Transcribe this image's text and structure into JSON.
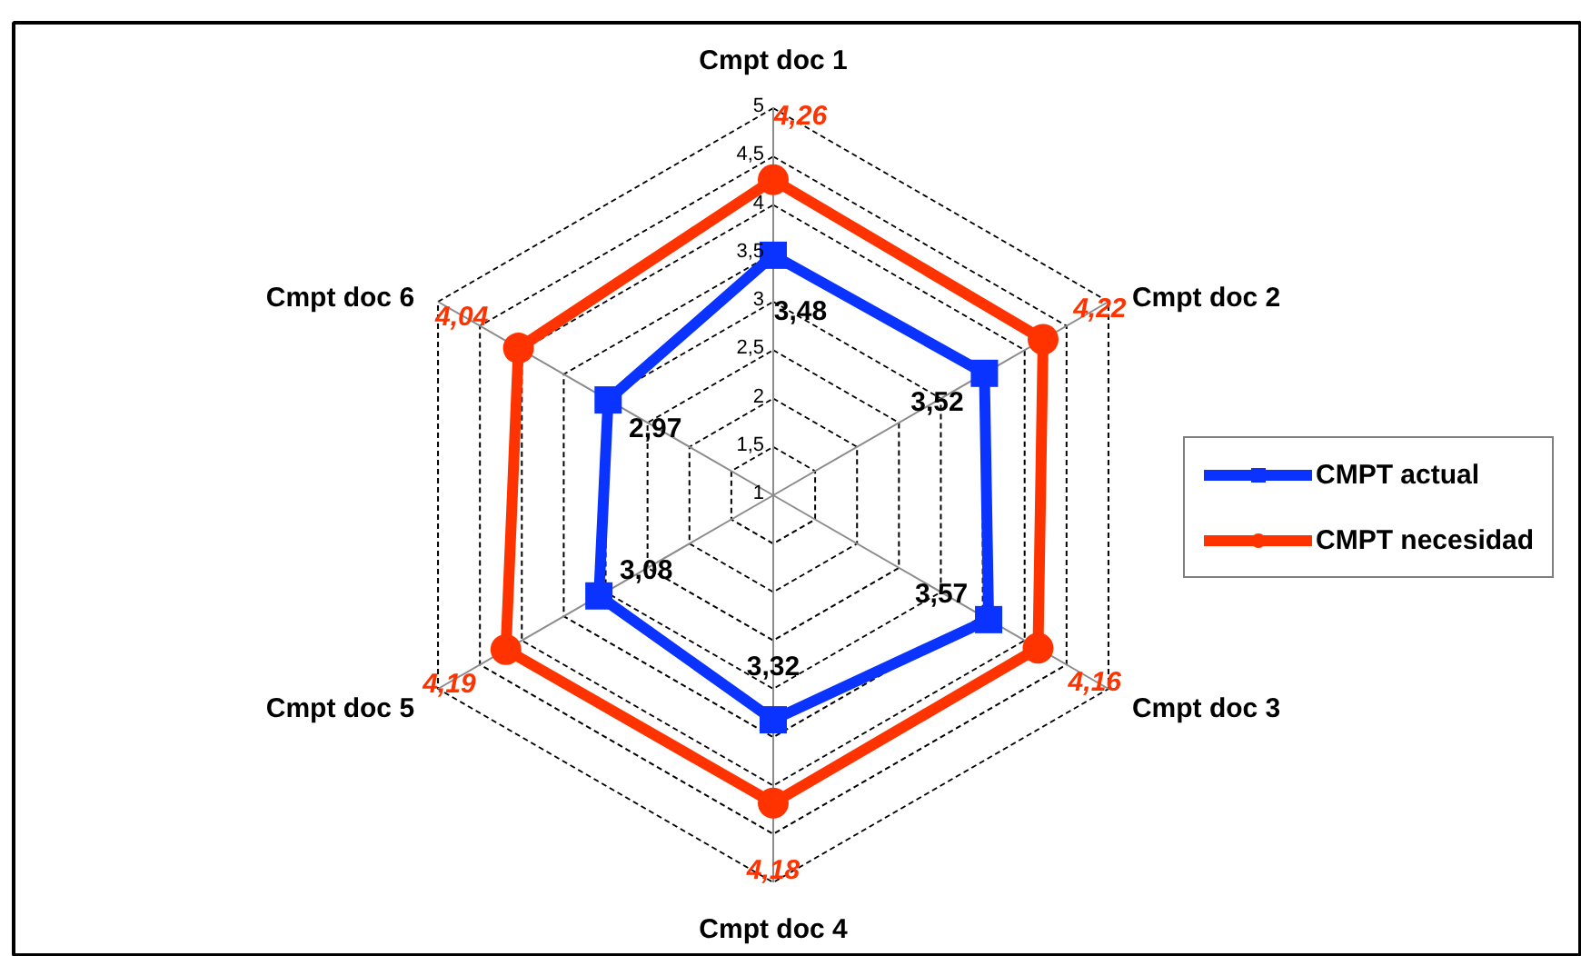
{
  "chart_data": {
    "type": "radar",
    "categories": [
      "Cmpt doc 1",
      "Cmpt doc 2",
      "Cmpt doc 3",
      "Cmpt doc 4",
      "Cmpt doc 5",
      "Cmpt doc 6"
    ],
    "ylim": [
      1,
      5
    ],
    "yticks": [
      {
        "value": 1,
        "label": "1"
      },
      {
        "value": 1.5,
        "label": "1,5"
      },
      {
        "value": 2,
        "label": "2"
      },
      {
        "value": 2.5,
        "label": "2,5"
      },
      {
        "value": 3,
        "label": "3"
      },
      {
        "value": 3.5,
        "label": "3,5"
      },
      {
        "value": 4,
        "label": "4"
      },
      {
        "value": 4.5,
        "label": "4,5"
      },
      {
        "value": 5,
        "label": "5"
      }
    ],
    "grid": true,
    "legend": "right",
    "series": [
      {
        "name": "CMPT actual",
        "color": "#0a33ff",
        "marker": "square",
        "values": [
          3.48,
          3.52,
          3.57,
          3.32,
          3.08,
          2.97
        ],
        "value_labels": [
          "3,48",
          "3,52",
          "3,57",
          "3,32",
          "3,08",
          "2,97"
        ]
      },
      {
        "name": "CMPT necesidad",
        "color": "#ff3300",
        "marker": "circle",
        "values": [
          4.26,
          4.22,
          4.16,
          4.18,
          4.19,
          4.04
        ],
        "value_labels": [
          "4,26",
          "4,22",
          "4,16",
          "4,18",
          "4,19",
          "4,04"
        ]
      }
    ]
  }
}
